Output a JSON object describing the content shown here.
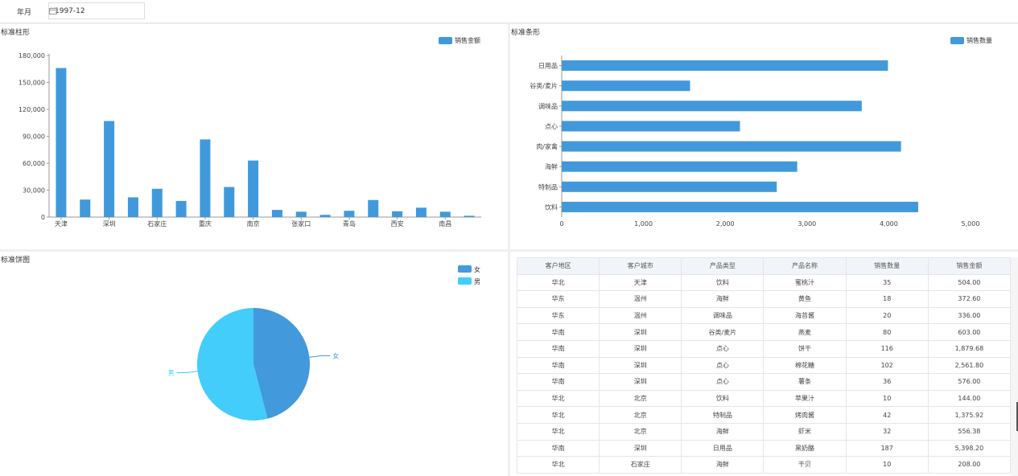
{
  "filter": {
    "label": "年月",
    "value": "1997-12",
    "icon": "calendar-icon"
  },
  "colors": {
    "bar": "#4199db",
    "pie_female": "#4299dc",
    "pie_male": "#42cdfb"
  },
  "bar_panel": {
    "title": "标准柱形"
  },
  "hbar_panel": {
    "title": "标准条形"
  },
  "pie_panel": {
    "title": "标准饼图"
  },
  "table": {
    "columns": [
      "客户地区",
      "客户城市",
      "产品类型",
      "产品名称",
      "销售数量",
      "销售金额"
    ],
    "rows": [
      [
        "华北",
        "天津",
        "饮料",
        "蜜桃汁",
        "35",
        "504.00"
      ],
      [
        "华东",
        "温州",
        "海鲜",
        "黄鱼",
        "18",
        "372.60"
      ],
      [
        "华东",
        "温州",
        "调味品",
        "海苔酱",
        "20",
        "336.00"
      ],
      [
        "华南",
        "深圳",
        "谷类/麦片",
        "燕麦",
        "80",
        "603.00"
      ],
      [
        "华南",
        "深圳",
        "点心",
        "饼干",
        "116",
        "1,879.68"
      ],
      [
        "华南",
        "深圳",
        "点心",
        "棉花糖",
        "102",
        "2,561.80"
      ],
      [
        "华南",
        "深圳",
        "点心",
        "薯条",
        "36",
        "576.00"
      ],
      [
        "华北",
        "北京",
        "饮料",
        "苹果汁",
        "10",
        "144.00"
      ],
      [
        "华北",
        "北京",
        "特制品",
        "烤肉酱",
        "42",
        "1,375.92"
      ],
      [
        "华北",
        "北京",
        "海鲜",
        "虾米",
        "32",
        "556.38"
      ],
      [
        "华南",
        "深圳",
        "日用品",
        "黑奶酪",
        "187",
        "5,398.20"
      ],
      [
        "华北",
        "石家庄",
        "海鲜",
        "干贝",
        "10",
        "208.00"
      ]
    ]
  },
  "chart_data": [
    {
      "type": "bar",
      "title": "标准柱形",
      "legend": [
        "销售金额"
      ],
      "legend_position": "top-right",
      "x_labels_shown": [
        "天津",
        "深圳",
        "石家庄",
        "重庆",
        "南京",
        "张家口",
        "青岛",
        "西安",
        "南昌"
      ],
      "values": [
        166000,
        19500,
        107000,
        22000,
        31500,
        18000,
        86500,
        33500,
        63000,
        8000,
        6000,
        2500,
        7000,
        19000,
        6500,
        10500,
        6000,
        1500
      ],
      "yticks": [
        "0",
        "30,000",
        "60,000",
        "90,000",
        "120,000",
        "150,000",
        "180,000"
      ],
      "ylim": [
        0,
        180000
      ]
    },
    {
      "type": "bar",
      "orientation": "horizontal",
      "title": "标准条形",
      "legend": [
        "销售数量"
      ],
      "legend_position": "top-right",
      "categories": [
        "日用品",
        "谷类/麦片",
        "调味品",
        "点心",
        "肉/家禽",
        "海鲜",
        "特制品",
        "饮料"
      ],
      "values": [
        3990,
        1570,
        3670,
        2180,
        4150,
        2880,
        2630,
        4360
      ],
      "xticks": [
        "0",
        "1,000",
        "2,000",
        "3,000",
        "4,000",
        "5,000"
      ],
      "xlim": [
        0,
        5000
      ]
    },
    {
      "type": "pie",
      "title": "标准饼图",
      "legend": [
        "女",
        "男"
      ],
      "legend_position": "top-right",
      "labels": [
        "女",
        "男"
      ],
      "values": [
        46,
        54
      ]
    }
  ]
}
